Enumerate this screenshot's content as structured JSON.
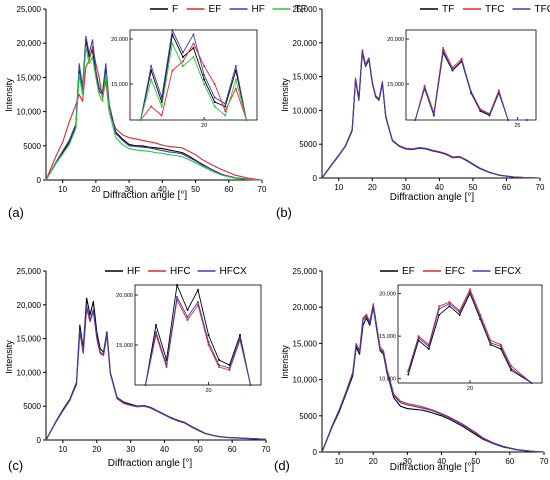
{
  "chart_data": [
    {
      "type": "line",
      "panel_label": "(a)",
      "xlabel": "Diffraction angle [°]",
      "ylabel": "Intensity",
      "xlim": [
        5,
        70
      ],
      "ylim": [
        0,
        25000
      ],
      "x_ticks": [
        "10",
        "20",
        "30",
        "40",
        "50",
        "60",
        "70"
      ],
      "y_ticks": [
        "0",
        "5000",
        "10,000",
        "15,000",
        "20,000",
        "25,000"
      ],
      "legend_position": "top",
      "series": [
        {
          "name": "F",
          "color": "#000000",
          "x": [
            5,
            8,
            10,
            12,
            14,
            15,
            16,
            17,
            18,
            19,
            20,
            21,
            22,
            23,
            24,
            26,
            28,
            30,
            32,
            34,
            36,
            38,
            40,
            42,
            44,
            46,
            48,
            50,
            52,
            55,
            58,
            62,
            66,
            70
          ],
          "y": [
            0,
            2500,
            4000,
            5500,
            8000,
            16500,
            13000,
            20500,
            18000,
            19000,
            15500,
            13000,
            12500,
            16500,
            11000,
            7000,
            6000,
            5200,
            5000,
            5000,
            4800,
            4700,
            4600,
            4400,
            4200,
            4000,
            3500,
            2900,
            2300,
            1500,
            800,
            300,
            100,
            0
          ]
        },
        {
          "name": "EF",
          "color": "#e8262b",
          "x": [
            5,
            8,
            10,
            12,
            14,
            15,
            16,
            17,
            18,
            19,
            20,
            21,
            22,
            23,
            24,
            26,
            28,
            30,
            32,
            34,
            36,
            38,
            40,
            42,
            44,
            46,
            48,
            50,
            52,
            55,
            58,
            62,
            66,
            70
          ],
          "y": [
            0,
            3500,
            5500,
            8500,
            11000,
            12500,
            11500,
            16500,
            17500,
            19500,
            17000,
            15000,
            12000,
            14500,
            10000,
            7500,
            6600,
            6200,
            6000,
            5800,
            5600,
            5400,
            5100,
            4900,
            4800,
            4700,
            4200,
            3700,
            3000,
            2200,
            1500,
            700,
            250,
            0
          ]
        },
        {
          "name": "HF",
          "color": "#3a3fb0",
          "x": [
            5,
            8,
            10,
            12,
            14,
            15,
            16,
            17,
            18,
            19,
            20,
            21,
            22,
            23,
            24,
            26,
            28,
            30,
            32,
            34,
            36,
            38,
            40,
            42,
            44,
            46,
            48,
            50,
            52,
            55,
            58,
            62,
            66,
            70
          ],
          "y": [
            0,
            2600,
            4200,
            5800,
            8200,
            17000,
            13500,
            21000,
            18500,
            20500,
            16000,
            13500,
            12800,
            17000,
            11000,
            6800,
            5800,
            5000,
            4900,
            4800,
            4700,
            4500,
            4300,
            4100,
            4000,
            3800,
            3300,
            2800,
            2200,
            1500,
            800,
            300,
            100,
            0
          ]
        },
        {
          "name": "TF",
          "color": "#2bc43c",
          "x": [
            5,
            8,
            10,
            12,
            14,
            15,
            16,
            17,
            18,
            19,
            20,
            21,
            22,
            23,
            24,
            26,
            28,
            30,
            32,
            34,
            36,
            38,
            40,
            42,
            44,
            46,
            48,
            50,
            52,
            55,
            58,
            62,
            66,
            70
          ],
          "y": [
            0,
            2400,
            3800,
            5200,
            7600,
            15500,
            12500,
            19500,
            17000,
            18000,
            15000,
            12500,
            11500,
            15500,
            10000,
            6200,
            5200,
            4600,
            4400,
            4300,
            4200,
            4000,
            3900,
            3700,
            3600,
            3400,
            3000,
            2500,
            2000,
            1300,
            700,
            250,
            80,
            0
          ]
        }
      ],
      "inset": {
        "x_ticks": [
          "20"
        ],
        "y_ticks": [
          "15,000",
          "20,000"
        ],
        "xlim": [
          13,
          25
        ],
        "ylim": [
          11000,
          21000
        ]
      }
    },
    {
      "type": "line",
      "panel_label": "(b)",
      "xlabel": "Diffraction angle [°]",
      "ylabel": "Intensity",
      "xlim": [
        5,
        70
      ],
      "ylim": [
        0,
        25000
      ],
      "x_ticks": [
        "10",
        "20",
        "30",
        "40",
        "50",
        "60",
        "70"
      ],
      "y_ticks": [
        "0",
        "5000",
        "10,000",
        "15,000",
        "20,000",
        "25,000"
      ],
      "legend_position": "top",
      "series": [
        {
          "name": "TF",
          "color": "#000000",
          "x": [
            5,
            8,
            10,
            12,
            14,
            15,
            16,
            17,
            18,
            19,
            20,
            21,
            22,
            23,
            24,
            26,
            28,
            30,
            32,
            34,
            36,
            38,
            40,
            42,
            44,
            46,
            48,
            50,
            52,
            55,
            58,
            62,
            66,
            70
          ],
          "y": [
            0,
            2000,
            3300,
            4700,
            7000,
            14500,
            11500,
            18500,
            16500,
            17500,
            14000,
            12000,
            11500,
            14000,
            9000,
            5500,
            4700,
            4300,
            4200,
            4400,
            4300,
            4000,
            3800,
            3500,
            3000,
            3100,
            2600,
            2000,
            1400,
            800,
            400,
            150,
            50,
            0
          ]
        },
        {
          "name": "TFC",
          "color": "#e8262b",
          "x": [
            5,
            8,
            10,
            12,
            14,
            15,
            16,
            17,
            18,
            19,
            20,
            21,
            22,
            23,
            24,
            26,
            28,
            30,
            32,
            34,
            36,
            38,
            40,
            42,
            44,
            46,
            48,
            50,
            52,
            55,
            58,
            62,
            66,
            70
          ],
          "y": [
            0,
            2100,
            3400,
            4800,
            7200,
            14800,
            11800,
            19000,
            16800,
            17800,
            14200,
            12200,
            11700,
            14300,
            9200,
            5600,
            4800,
            4400,
            4300,
            4500,
            4400,
            4100,
            3900,
            3600,
            3100,
            3200,
            2700,
            2100,
            1500,
            850,
            420,
            160,
            50,
            0
          ]
        },
        {
          "name": "TFCX",
          "color": "#3a3fb0",
          "x": [
            5,
            8,
            10,
            12,
            14,
            15,
            16,
            17,
            18,
            19,
            20,
            21,
            22,
            23,
            24,
            26,
            28,
            30,
            32,
            34,
            36,
            38,
            40,
            42,
            44,
            46,
            48,
            50,
            52,
            55,
            58,
            62,
            66,
            70
          ],
          "y": [
            0,
            2050,
            3350,
            4750,
            7100,
            14600,
            11600,
            18700,
            16600,
            17600,
            14100,
            12100,
            11600,
            14100,
            9100,
            5550,
            4750,
            4350,
            4250,
            4450,
            4350,
            4050,
            3850,
            3550,
            3050,
            3150,
            2650,
            2050,
            1450,
            820,
            410,
            150,
            50,
            0
          ]
        }
      ],
      "inset": {
        "x_ticks": [
          "25"
        ],
        "y_ticks": [
          "15,000",
          "20,000"
        ],
        "xlim": [
          13,
          27
        ],
        "ylim": [
          11000,
          21000
        ]
      }
    },
    {
      "type": "line",
      "panel_label": "(c)",
      "xlabel": "Diffraction angle [°]",
      "ylabel": "Intensity",
      "xlim": [
        5,
        70
      ],
      "ylim": [
        0,
        25000
      ],
      "x_ticks": [
        "10",
        "20",
        "30",
        "40",
        "50",
        "60",
        "70"
      ],
      "y_ticks": [
        "0",
        "5000",
        "10,000",
        "15,000",
        "20,000",
        "25,000"
      ],
      "legend_position": "top",
      "series": [
        {
          "name": "HF",
          "color": "#000000",
          "x": [
            5,
            8,
            10,
            12,
            14,
            15,
            16,
            17,
            18,
            19,
            20,
            21,
            22,
            23,
            24,
            26,
            28,
            30,
            32,
            34,
            36,
            38,
            40,
            42,
            44,
            46,
            48,
            50,
            52,
            55,
            58,
            62,
            66,
            70
          ],
          "y": [
            0,
            2800,
            4500,
            6000,
            8500,
            17000,
            13500,
            21000,
            18500,
            20500,
            16000,
            13500,
            13000,
            16000,
            10000,
            6300,
            5600,
            5300,
            5000,
            5100,
            4800,
            4300,
            3800,
            3300,
            2900,
            2600,
            2000,
            1500,
            1000,
            600,
            400,
            300,
            200,
            100
          ]
        },
        {
          "name": "HFC",
          "color": "#e8262b",
          "x": [
            5,
            8,
            10,
            12,
            14,
            15,
            16,
            17,
            18,
            19,
            20,
            21,
            22,
            23,
            24,
            26,
            28,
            30,
            32,
            34,
            36,
            38,
            40,
            42,
            44,
            46,
            48,
            50,
            52,
            55,
            58,
            62,
            66,
            70
          ],
          "y": [
            0,
            2700,
            4300,
            5800,
            8200,
            16000,
            12800,
            19500,
            17500,
            19000,
            15000,
            12800,
            12500,
            15500,
            9800,
            6100,
            5400,
            5100,
            4900,
            5000,
            4700,
            4200,
            3700,
            3200,
            2800,
            2500,
            1900,
            1400,
            950,
            580,
            380,
            280,
            180,
            90
          ]
        },
        {
          "name": "HFCX",
          "color": "#3a3fb0",
          "x": [
            5,
            8,
            10,
            12,
            14,
            15,
            16,
            17,
            18,
            19,
            20,
            21,
            22,
            23,
            24,
            26,
            28,
            30,
            32,
            34,
            36,
            38,
            40,
            42,
            44,
            46,
            48,
            50,
            52,
            55,
            58,
            62,
            66,
            70
          ],
          "y": [
            0,
            2750,
            4400,
            5900,
            8300,
            16300,
            13000,
            19800,
            17800,
            19300,
            15300,
            13000,
            12700,
            15700,
            9900,
            6200,
            5500,
            5200,
            4950,
            5050,
            4750,
            4250,
            3750,
            3250,
            2850,
            2550,
            1950,
            1450,
            980,
            590,
            390,
            290,
            190,
            95
          ]
        }
      ],
      "inset": {
        "x_ticks": [
          "20"
        ],
        "y_ticks": [
          "15,000",
          "20,000"
        ],
        "xlim": [
          13,
          25
        ],
        "ylim": [
          11000,
          21000
        ]
      }
    },
    {
      "type": "line",
      "panel_label": "(d)",
      "xlabel": "Diffraction angle [°]",
      "ylabel": "Intensity",
      "xlim": [
        5,
        70
      ],
      "ylim": [
        0,
        25000
      ],
      "x_ticks": [
        "10",
        "20",
        "30",
        "40",
        "50",
        "60",
        "70"
      ],
      "y_ticks": [
        "0",
        "5000",
        "10,000",
        "15,000",
        "20,000",
        "25,000"
      ],
      "legend_position": "top",
      "series": [
        {
          "name": "EF",
          "color": "#000000",
          "x": [
            5,
            8,
            10,
            12,
            14,
            15,
            16,
            17,
            18,
            19,
            20,
            21,
            22,
            23,
            24,
            26,
            28,
            30,
            32,
            34,
            36,
            38,
            40,
            42,
            44,
            46,
            48,
            50,
            52,
            55,
            58,
            62,
            66,
            70
          ],
          "y": [
            0,
            3500,
            5500,
            8000,
            10500,
            14500,
            13500,
            17500,
            18500,
            17500,
            20000,
            17000,
            14000,
            13500,
            11000,
            7500,
            6300,
            6000,
            5900,
            5800,
            5600,
            5300,
            5000,
            4600,
            4100,
            3600,
            3000,
            2400,
            1800,
            1200,
            700,
            300,
            100,
            0
          ]
        },
        {
          "name": "EFC",
          "color": "#e8262b",
          "x": [
            5,
            8,
            10,
            12,
            14,
            15,
            16,
            17,
            18,
            19,
            20,
            21,
            22,
            23,
            24,
            26,
            28,
            30,
            32,
            34,
            36,
            38,
            40,
            42,
            44,
            46,
            48,
            50,
            52,
            55,
            58,
            62,
            66,
            70
          ],
          "y": [
            0,
            3700,
            5800,
            8300,
            11000,
            15000,
            14000,
            18500,
            19000,
            18000,
            20500,
            17500,
            14500,
            14000,
            11500,
            8000,
            7000,
            6700,
            6500,
            6300,
            6000,
            5700,
            5300,
            4900,
            4400,
            3900,
            3300,
            2700,
            2000,
            1300,
            800,
            350,
            120,
            0
          ]
        },
        {
          "name": "EFCX",
          "color": "#3a3fb0",
          "x": [
            5,
            8,
            10,
            12,
            14,
            15,
            16,
            17,
            18,
            19,
            20,
            21,
            22,
            23,
            24,
            26,
            28,
            30,
            32,
            34,
            36,
            38,
            40,
            42,
            44,
            46,
            48,
            50,
            52,
            55,
            58,
            62,
            66,
            70
          ],
          "y": [
            0,
            3600,
            5700,
            8200,
            10800,
            14800,
            13800,
            18200,
            18800,
            17800,
            20200,
            17200,
            14200,
            13800,
            11200,
            7800,
            6800,
            6500,
            6300,
            6100,
            5900,
            5600,
            5200,
            4800,
            4300,
            3800,
            3200,
            2600,
            1900,
            1250,
            750,
            320,
            110,
            0
          ]
        }
      ],
      "inset": {
        "x_ticks": [
          "20"
        ],
        "y_ticks": [
          "10,000",
          "15,000",
          "20,000"
        ],
        "xlim": [
          13,
          27
        ],
        "ylim": [
          9500,
          21000
        ]
      }
    }
  ]
}
